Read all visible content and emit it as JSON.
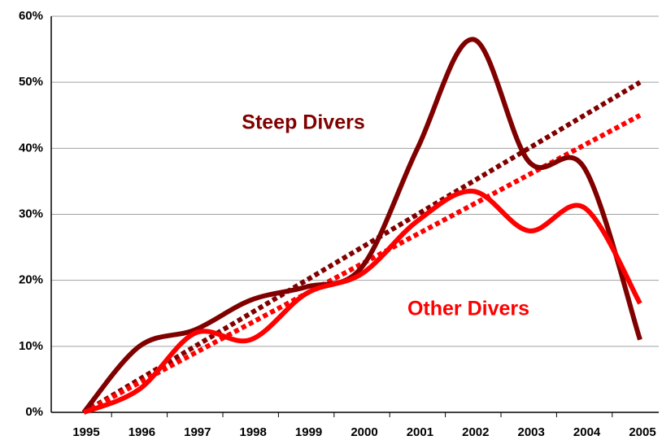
{
  "chart_data": {
    "type": "line",
    "categories": [
      "1995",
      "1996",
      "1997",
      "1998",
      "1999",
      "2000",
      "2001",
      "2002",
      "2003",
      "2004",
      "2005"
    ],
    "series": [
      {
        "name": "Steep Divers",
        "color": "#800000",
        "values": [
          0,
          10,
          12.5,
          17,
          19,
          22,
          40,
          56.5,
          38,
          37,
          11
        ]
      },
      {
        "name": "Other Divers",
        "color": "#ff0000",
        "values": [
          0,
          3.5,
          12,
          11,
          18,
          21,
          29,
          33.5,
          27.5,
          31,
          16.5
        ]
      }
    ],
    "trendlines": [
      {
        "color": "#800000",
        "values": [
          0,
          50
        ]
      },
      {
        "color": "#ff0000",
        "values": [
          0,
          45
        ]
      }
    ],
    "ylim": [
      0,
      60
    ],
    "yticks": [
      {
        "value": 0,
        "label": "0%"
      },
      {
        "value": 10,
        "label": "10%"
      },
      {
        "value": 20,
        "label": "20%"
      },
      {
        "value": 30,
        "label": "30%"
      },
      {
        "value": 40,
        "label": "40%"
      },
      {
        "value": 50,
        "label": "50%"
      },
      {
        "value": 60,
        "label": "60%"
      }
    ],
    "grid": true
  }
}
